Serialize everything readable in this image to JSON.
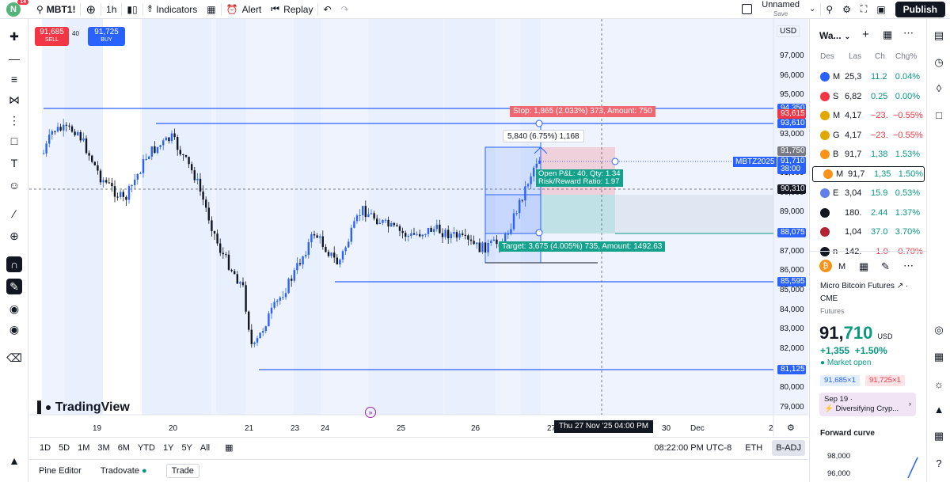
{
  "topbar": {
    "avatar_letter": "N",
    "notif_count": "14",
    "symbol": "MBT1!",
    "interval": "1h",
    "indicators": "Indicators",
    "alert": "Alert",
    "replay": "Replay",
    "layout_name": "Unnamed",
    "save_label": "Save",
    "publish": "Publish"
  },
  "trade_panel": {
    "sell_price": "91,685",
    "sell_label": "SELL",
    "qty": "40",
    "buy_price": "91,725",
    "buy_label": "BUY"
  },
  "currency": "USD",
  "price_axis": [
    "97,000",
    "96,000",
    "95,000",
    "94,000",
    "93,000",
    "92,000",
    "91,000",
    "90,000",
    "89,000",
    "88,000",
    "87,000",
    "86,000",
    "85,000",
    "84,000",
    "83,000",
    "82,000",
    "81,000",
    "80,000",
    "79,000"
  ],
  "price_labels": {
    "stop_level": "94,350",
    "red_level": "93,615",
    "upper_line": "93,610",
    "target_hi": "91,750",
    "current": "91,710",
    "countdown": "38:00",
    "crosshair": "90,310",
    "target_level": "88,075",
    "mid_line": "85,595",
    "low_line": "81,125"
  },
  "time_axis": [
    "19",
    "20",
    "21",
    "23",
    "24",
    "25",
    "26",
    "27",
    "30",
    "Dec",
    "2"
  ],
  "crosshair_time": "Thu 27 Nov '25   04:00 PM",
  "position": {
    "stop_text": "Stop: 1,865 (2.033%) 373, Amount: 750",
    "range_text": "5,840 (6.75%) 1,168",
    "pnl_text": "Open P&L: 40, Qty: 1.34",
    "rr_text": "Risk/Reward Ratio: 1.97",
    "target_text": "Target: 3,675 (4.005%) 735, Amount: 1492.63"
  },
  "symbol_tag": "MBTZ2025",
  "logo_text": "TradingView",
  "range_buttons": [
    "1D",
    "5D",
    "1M",
    "3M",
    "6M",
    "YTD",
    "1Y",
    "5Y",
    "All"
  ],
  "clock": "08:22:00 PM UTC-8",
  "eth": "ETH",
  "badj": "B-ADJ",
  "bottom_tabs": [
    "Pine Editor",
    "Tradovate",
    "Trade"
  ],
  "watchlist": {
    "title": "Wa...",
    "headers": {
      "sym": "Des",
      "last": "Las",
      "ch": "Ch",
      "chp": "Chg%"
    },
    "rows": [
      {
        "sym": "M",
        "last": "25,3",
        "ch": "11.2",
        "chp": "0.04%",
        "dir": "up",
        "color": "#2962ff"
      },
      {
        "sym": "S",
        "last": "6,82",
        "ch": "0.25",
        "chp": "0.00%",
        "dir": "up",
        "color": "#f23645"
      },
      {
        "sym": "M",
        "last": "4,17",
        "ch": "−23.",
        "chp": "−0.55%",
        "dir": "down",
        "color": "#e0a800"
      },
      {
        "sym": "G",
        "last": "4,17",
        "ch": "−23.",
        "chp": "−0.55%",
        "dir": "down",
        "color": "#e0a800"
      },
      {
        "sym": "B",
        "last": "91,7",
        "ch": "1,38",
        "chp": "1.53%",
        "dir": "up",
        "color": "#f7931a"
      },
      {
        "sym": "M",
        "last": "91,7",
        "ch": "1,35",
        "chp": "1.50%",
        "dir": "up",
        "color": "#f7931a"
      },
      {
        "sym": "E",
        "last": "3,04",
        "ch": "15.9",
        "chp": "0.53%",
        "dir": "up",
        "color": "#627eea"
      },
      {
        "sym": "",
        "last": "180.",
        "ch": "2.44",
        "chp": "1.37%",
        "dir": "up",
        "color": "#131722"
      },
      {
        "sym": "",
        "last": "1,04",
        "ch": "37.0",
        "chp": "3.70%",
        "dir": "up",
        "color": "#b22234"
      },
      {
        "sym": "n",
        "last": "142.",
        "ch": "−1.0",
        "chp": "−0.70%",
        "dir": "down",
        "color": "#131722"
      }
    ]
  },
  "details": {
    "symbol_letter": "M",
    "name": "Micro Bitcoin Futures",
    "exchange": "CME",
    "type": "Futures",
    "price_main": "91,",
    "price_tail": "710",
    "price_currency": "USD",
    "change": "+1,355",
    "change_pct": "+1.50%",
    "status": "Market open",
    "bid": "91,685×1",
    "ask": "91,725×1",
    "event_date": "Sep 19 ·",
    "event_text": "Diversifying Cryp...",
    "forward_curve": "Forward curve",
    "curve_ticks": [
      "98,000",
      "96,000"
    ]
  }
}
